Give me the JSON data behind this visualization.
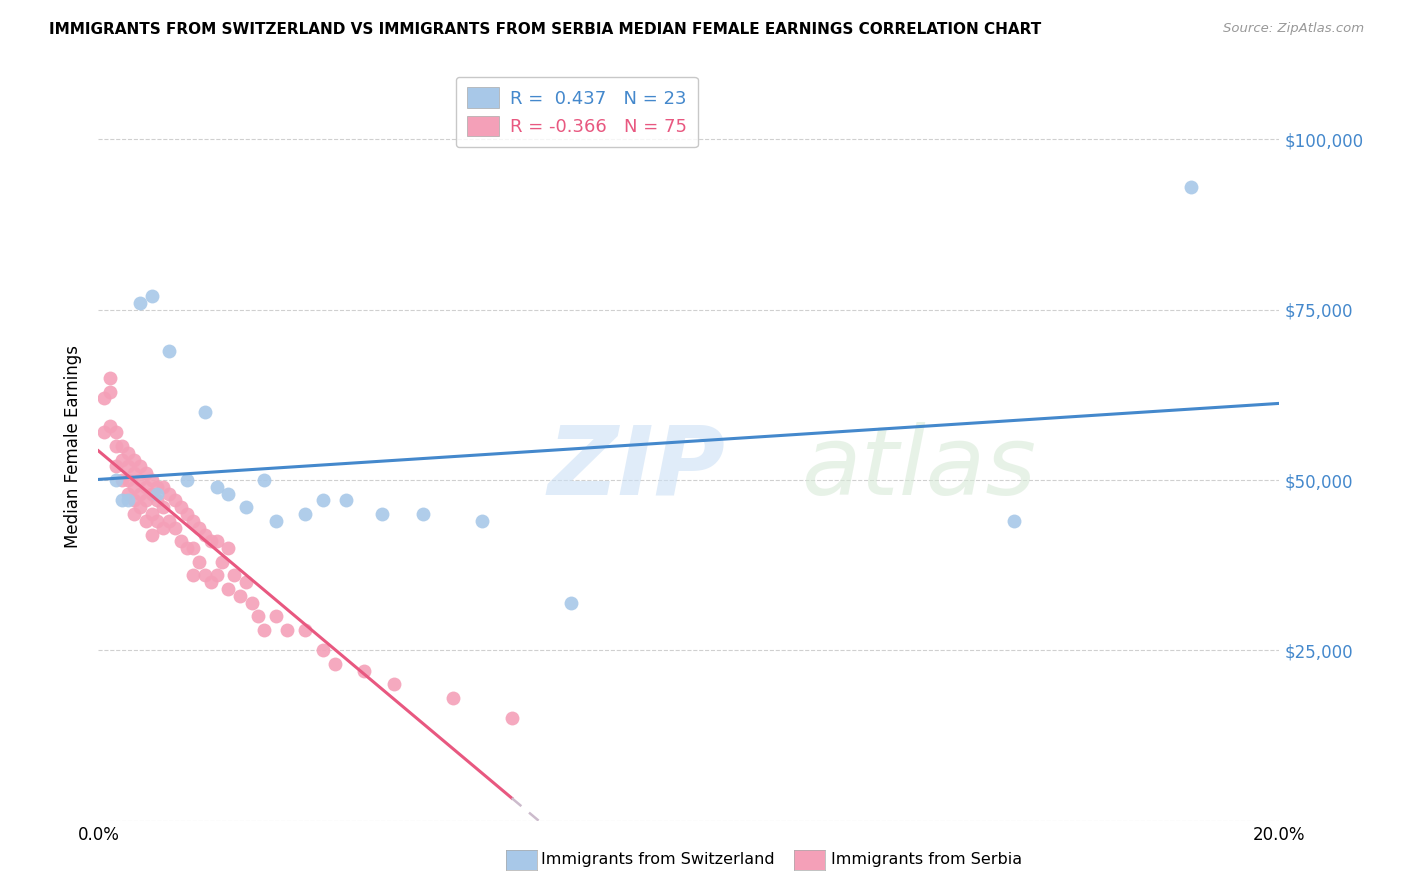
{
  "title": "IMMIGRANTS FROM SWITZERLAND VS IMMIGRANTS FROM SERBIA MEDIAN FEMALE EARNINGS CORRELATION CHART",
  "source": "Source: ZipAtlas.com",
  "ylabel": "Median Female Earnings",
  "xlim": [
    0.0,
    0.2
  ],
  "ylim": [
    0,
    110000
  ],
  "yticks": [
    0,
    25000,
    50000,
    75000,
    100000
  ],
  "ytick_labels": [
    "",
    "$25,000",
    "$50,000",
    "$75,000",
    "$100,000"
  ],
  "xticks": [
    0.0,
    0.05,
    0.1,
    0.15,
    0.2
  ],
  "xtick_labels": [
    "0.0%",
    "",
    "",
    "",
    "20.0%"
  ],
  "background_color": "#ffffff",
  "grid_color": "#d0d0d0",
  "switzerland_color": "#a8c8e8",
  "serbia_color": "#f4a0b8",
  "switzerland_line_color": "#4488cc",
  "serbia_line_color": "#e85880",
  "serbia_line_dashed_color": "#ccbbcc",
  "r_switzerland": 0.437,
  "n_switzerland": 23,
  "r_serbia": -0.366,
  "n_serbia": 75,
  "switzerland_scatter_x": [
    0.003,
    0.004,
    0.005,
    0.007,
    0.009,
    0.01,
    0.012,
    0.015,
    0.018,
    0.02,
    0.022,
    0.025,
    0.028,
    0.03,
    0.035,
    0.038,
    0.042,
    0.048,
    0.055,
    0.065,
    0.08,
    0.155,
    0.185
  ],
  "switzerland_scatter_y": [
    50000,
    47000,
    47000,
    76000,
    77000,
    48000,
    69000,
    50000,
    60000,
    49000,
    48000,
    46000,
    50000,
    44000,
    45000,
    47000,
    47000,
    45000,
    45000,
    44000,
    32000,
    44000,
    93000
  ],
  "serbia_scatter_x": [
    0.001,
    0.001,
    0.002,
    0.002,
    0.002,
    0.003,
    0.003,
    0.003,
    0.004,
    0.004,
    0.004,
    0.005,
    0.005,
    0.005,
    0.005,
    0.006,
    0.006,
    0.006,
    0.006,
    0.006,
    0.007,
    0.007,
    0.007,
    0.007,
    0.008,
    0.008,
    0.008,
    0.008,
    0.009,
    0.009,
    0.009,
    0.009,
    0.01,
    0.01,
    0.01,
    0.011,
    0.011,
    0.011,
    0.012,
    0.012,
    0.013,
    0.013,
    0.014,
    0.014,
    0.015,
    0.015,
    0.016,
    0.016,
    0.016,
    0.017,
    0.017,
    0.018,
    0.018,
    0.019,
    0.019,
    0.02,
    0.02,
    0.021,
    0.022,
    0.022,
    0.023,
    0.024,
    0.025,
    0.026,
    0.027,
    0.028,
    0.03,
    0.032,
    0.035,
    0.038,
    0.04,
    0.045,
    0.05,
    0.06,
    0.07
  ],
  "serbia_scatter_y": [
    62000,
    57000,
    65000,
    63000,
    58000,
    57000,
    55000,
    52000,
    55000,
    53000,
    50000,
    54000,
    52000,
    50000,
    48000,
    53000,
    51000,
    49000,
    47000,
    45000,
    52000,
    50000,
    48000,
    46000,
    51000,
    49000,
    47000,
    44000,
    50000,
    48000,
    45000,
    42000,
    49000,
    47000,
    44000,
    49000,
    46000,
    43000,
    48000,
    44000,
    47000,
    43000,
    46000,
    41000,
    45000,
    40000,
    44000,
    40000,
    36000,
    43000,
    38000,
    42000,
    36000,
    41000,
    35000,
    41000,
    36000,
    38000,
    40000,
    34000,
    36000,
    33000,
    35000,
    32000,
    30000,
    28000,
    30000,
    28000,
    28000,
    25000,
    23000,
    22000,
    20000,
    18000,
    15000
  ]
}
